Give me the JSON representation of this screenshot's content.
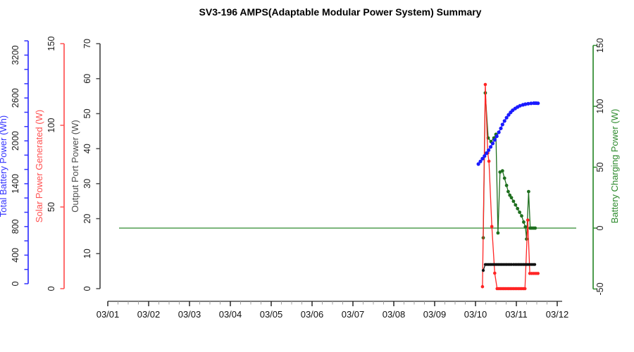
{
  "title": "SV3-196 AMPS(Adaptable Modular Power System) Summary",
  "chart_data": {
    "type": "line",
    "title": "SV3-196 AMPS(Adaptable Modular Power System) Summary",
    "x_labels": [
      "03/01",
      "03/02",
      "03/03",
      "03/04",
      "03/05",
      "03/06",
      "03/07",
      "03/08",
      "03/09",
      "03/10",
      "03/11",
      "03/12"
    ],
    "x_minor_ticks_per_day": 4,
    "grid": "off",
    "legend": "none",
    "y_axes": [
      {
        "id": "battery",
        "title": "Total Battery Power (Wh)",
        "side": "left",
        "color": "#3434ff",
        "label_color": "#1a1a1a",
        "range": [
          0,
          3400
        ],
        "ticks": [
          [
            0,
            "0"
          ],
          [
            200,
            ""
          ],
          [
            400,
            "400"
          ],
          [
            600,
            ""
          ],
          [
            800,
            "800"
          ],
          [
            1000,
            ""
          ],
          [
            1200,
            ""
          ],
          [
            1400,
            "1400"
          ],
          [
            1600,
            ""
          ],
          [
            1800,
            ""
          ],
          [
            2000,
            "2000"
          ],
          [
            2200,
            ""
          ],
          [
            2400,
            ""
          ],
          [
            2600,
            "2600"
          ],
          [
            2800,
            ""
          ],
          [
            3000,
            ""
          ],
          [
            3200,
            "3200"
          ],
          [
            3400,
            ""
          ]
        ]
      },
      {
        "id": "solar",
        "title": "Solar Power Generated (W)",
        "side": "left",
        "color": "#ff5252",
        "label_color": "#1a1a1a",
        "range": [
          0,
          150
        ],
        "ticks": [
          [
            0,
            "0"
          ],
          [
            50,
            "50"
          ],
          [
            100,
            "100"
          ],
          [
            150,
            "150"
          ]
        ]
      },
      {
        "id": "output",
        "title": "Output Port Power (W)",
        "side": "left",
        "color": "#4d4d4d",
        "label_color": "#1a1a1a",
        "range": [
          0,
          70
        ],
        "ticks": [
          [
            0,
            "0"
          ],
          [
            10,
            "10"
          ],
          [
            20,
            "20"
          ],
          [
            30,
            "30"
          ],
          [
            40,
            "40"
          ],
          [
            50,
            "50"
          ],
          [
            60,
            "60"
          ],
          [
            70,
            "70"
          ]
        ]
      },
      {
        "id": "charging",
        "title": "Battery Charging Power (W)",
        "side": "right",
        "color": "#2e8b2e",
        "label_color": "#1a1a1a",
        "range": [
          -50,
          150
        ],
        "ticks": [
          [
            -50,
            "-50"
          ],
          [
            0,
            "0"
          ],
          [
            50,
            "50"
          ],
          [
            100,
            "100"
          ],
          [
            150,
            "150"
          ]
        ]
      }
    ],
    "reference_line": {
      "axis": "charging",
      "value": 0,
      "color": "#2e8b2e"
    },
    "series": [
      {
        "id": "charging",
        "name": "Battery Charging Power (W)",
        "axis": "charging",
        "color": "#1e6f1e",
        "dot_radius": 2.4,
        "points": [
          [
            9.19,
            -8
          ],
          [
            9.24,
            111
          ],
          [
            9.31,
            74
          ],
          [
            9.38,
            71
          ],
          [
            9.45,
            74
          ],
          [
            9.5,
            77
          ],
          [
            9.55,
            -4
          ],
          [
            9.6,
            46
          ],
          [
            9.66,
            47
          ],
          [
            9.71,
            41
          ],
          [
            9.76,
            35
          ],
          [
            9.8,
            30
          ],
          [
            9.84,
            27
          ],
          [
            9.88,
            25
          ],
          [
            9.93,
            22
          ],
          [
            9.98,
            19
          ],
          [
            10.03,
            16
          ],
          [
            10.08,
            13
          ],
          [
            10.13,
            10
          ],
          [
            10.18,
            5
          ],
          [
            10.22,
            1
          ],
          [
            10.25,
            -9
          ],
          [
            10.3,
            30
          ],
          [
            10.34,
            0
          ],
          [
            10.38,
            0
          ],
          [
            10.42,
            0
          ],
          [
            10.46,
            0
          ]
        ]
      },
      {
        "id": "solar",
        "name": "Solar Power Generated (W)",
        "axis": "solar",
        "color": "#ff2424",
        "dot_radius": 2.3,
        "points": [
          [
            9.17,
            1.2
          ],
          [
            9.24,
            125
          ],
          [
            9.3,
            83
          ],
          [
            9.33,
            78
          ],
          [
            9.4,
            38
          ],
          [
            9.47,
            9.5
          ],
          [
            9.53,
            0
          ],
          [
            9.57,
            0
          ],
          [
            9.61,
            0
          ],
          [
            9.65,
            0
          ],
          [
            9.69,
            0
          ],
          [
            9.73,
            0
          ],
          [
            9.77,
            0
          ],
          [
            9.81,
            0
          ],
          [
            9.85,
            0
          ],
          [
            9.89,
            0
          ],
          [
            9.93,
            0
          ],
          [
            9.97,
            0
          ],
          [
            10.01,
            0
          ],
          [
            10.05,
            0
          ],
          [
            10.09,
            0
          ],
          [
            10.13,
            0
          ],
          [
            10.17,
            0
          ],
          [
            10.21,
            0
          ],
          [
            10.28,
            42
          ],
          [
            10.33,
            9.3
          ],
          [
            10.38,
            9.3
          ],
          [
            10.43,
            9.3
          ],
          [
            10.48,
            9.3
          ],
          [
            10.53,
            9.3
          ]
        ]
      },
      {
        "id": "output",
        "name": "Output Port Power (W)",
        "axis": "output",
        "color": "#111111",
        "dot_radius": 2.1,
        "points": [
          [
            9.19,
            5.2
          ],
          [
            9.24,
            6.9
          ],
          [
            9.28,
            6.9
          ],
          [
            9.32,
            6.9
          ],
          [
            9.36,
            6.9
          ],
          [
            9.4,
            6.9
          ],
          [
            9.44,
            6.9
          ],
          [
            9.48,
            6.9
          ],
          [
            9.52,
            6.9
          ],
          [
            9.56,
            6.9
          ],
          [
            9.6,
            6.9
          ],
          [
            9.64,
            6.9
          ],
          [
            9.68,
            6.9
          ],
          [
            9.72,
            6.9
          ],
          [
            9.76,
            6.9
          ],
          [
            9.8,
            6.9
          ],
          [
            9.84,
            6.9
          ],
          [
            9.88,
            6.9
          ],
          [
            9.93,
            6.9
          ],
          [
            9.97,
            6.9
          ],
          [
            10.01,
            6.9
          ],
          [
            10.05,
            6.9
          ],
          [
            10.09,
            6.9
          ],
          [
            10.13,
            6.9
          ],
          [
            10.17,
            6.9
          ],
          [
            10.21,
            6.9
          ],
          [
            10.25,
            6.9
          ],
          [
            10.29,
            6.9
          ],
          [
            10.33,
            6.9
          ],
          [
            10.37,
            6.9
          ],
          [
            10.41,
            6.9
          ],
          [
            10.45,
            6.9
          ]
        ]
      },
      {
        "id": "battery",
        "name": "Total Battery Power (Wh)",
        "axis": "battery",
        "color": "#1a1aff",
        "dot_radius": 2.6,
        "points": [
          [
            9.07,
            1675
          ],
          [
            9.12,
            1712
          ],
          [
            9.17,
            1750
          ],
          [
            9.22,
            1788
          ],
          [
            9.27,
            1828
          ],
          [
            9.32,
            1870
          ],
          [
            9.37,
            1915
          ],
          [
            9.42,
            1963
          ],
          [
            9.47,
            2013
          ],
          [
            9.52,
            2065
          ],
          [
            9.57,
            2120
          ],
          [
            9.62,
            2175
          ],
          [
            9.66,
            2228
          ],
          [
            9.71,
            2278
          ],
          [
            9.76,
            2324
          ],
          [
            9.81,
            2364
          ],
          [
            9.86,
            2399
          ],
          [
            9.91,
            2428
          ],
          [
            9.97,
            2453
          ],
          [
            10.03,
            2474
          ],
          [
            10.09,
            2491
          ],
          [
            10.16,
            2504
          ],
          [
            10.22,
            2513
          ],
          [
            10.29,
            2520
          ],
          [
            10.36,
            2525
          ],
          [
            10.43,
            2528
          ],
          [
            10.48,
            2528
          ],
          [
            10.53,
            2526
          ]
        ]
      }
    ]
  }
}
